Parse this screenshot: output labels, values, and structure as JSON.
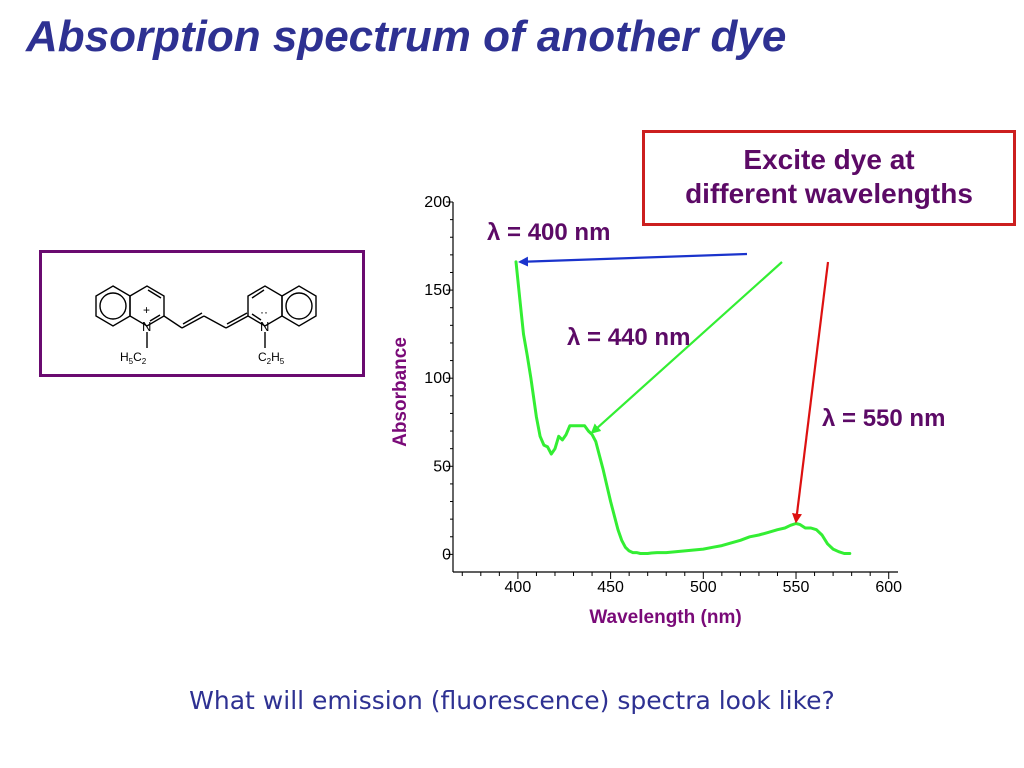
{
  "slide": {
    "title": "Absorption spectrum of another dye",
    "callout": {
      "line1": "Excite dye at",
      "line2": "different wavelengths"
    },
    "question": "What will emission (fluorescence) spectra look like?",
    "molecule": {
      "left_n_charge": "+",
      "left_n_label": "N",
      "left_substituent": "H5C2",
      "right_n_lonepair": "··",
      "right_n_label": "N",
      "right_substituent": "C2H5"
    }
  },
  "colors": {
    "title": "#2e3192",
    "annotation": "#5c0a66",
    "axis_label": "#7a0a78",
    "curve": "#33ee33",
    "arrow_400": "#1a33cc",
    "arrow_440": "#33ee33",
    "arrow_550": "#dd1111",
    "callout_border": "#cc1f1f",
    "molecule_border": "#6a0a70"
  },
  "chart_data": {
    "type": "line",
    "xlabel": "Wavelength (nm)",
    "ylabel": "Absorbance",
    "xlim": [
      365,
      605
    ],
    "ylim": [
      -10,
      200
    ],
    "xticks": [
      400,
      450,
      500,
      550,
      600
    ],
    "yticks": [
      0,
      50,
      100,
      150,
      200
    ],
    "grid": false,
    "series": [
      {
        "x": [
          399,
          401,
          403,
          405,
          407,
          410,
          412,
          414,
          416,
          418,
          420,
          422,
          424,
          426,
          428,
          430,
          432,
          434,
          436,
          438,
          440,
          442,
          444,
          446,
          448,
          450,
          452,
          454,
          456,
          458,
          460,
          462,
          464,
          466,
          468,
          470,
          472,
          475,
          480,
          485,
          490,
          495,
          500,
          505,
          510,
          515,
          520,
          525,
          530,
          535,
          540,
          544,
          547,
          550,
          552,
          555,
          558,
          561,
          564,
          567,
          570,
          573,
          576,
          579
        ],
        "y": [
          166,
          145,
          125,
          113,
          100,
          78,
          67,
          62,
          61,
          57,
          60,
          67,
          65,
          68,
          73,
          73,
          73,
          73,
          73,
          70,
          68,
          64,
          56,
          48,
          39,
          30,
          22,
          14,
          8,
          4,
          2,
          1,
          1,
          0.5,
          0.5,
          0.5,
          0.8,
          1,
          1,
          1.5,
          2,
          2.5,
          3,
          4,
          5,
          6.5,
          8,
          10,
          11,
          12.5,
          14,
          15,
          16.5,
          17.5,
          17,
          15,
          15,
          14,
          11,
          6,
          3,
          1.5,
          0.5,
          0.5
        ]
      }
    ],
    "annotations": [
      {
        "text": "λ = 400 nm",
        "arrow_target": {
          "x": 399,
          "y": 166
        }
      },
      {
        "text": "λ = 440 nm",
        "arrow_target": {
          "x": 440,
          "y": 68
        }
      },
      {
        "text": "λ = 550 nm",
        "arrow_target": {
          "x": 550,
          "y": 17.5
        }
      }
    ]
  }
}
